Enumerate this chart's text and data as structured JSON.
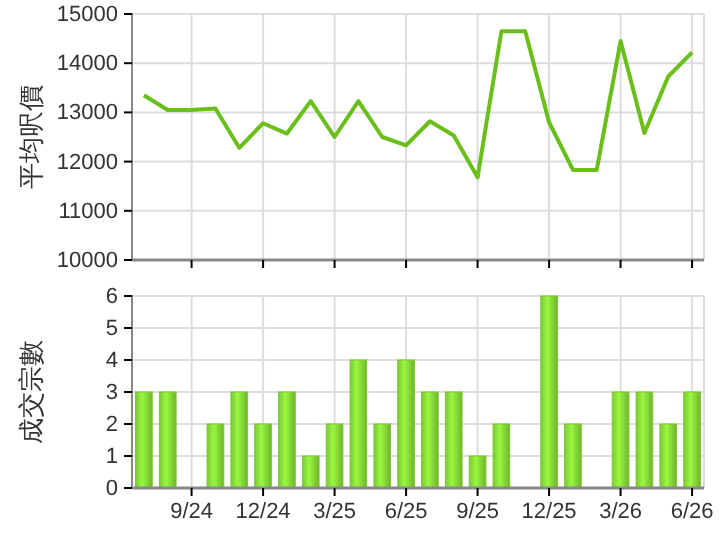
{
  "chart_data": [
    {
      "type": "line",
      "ylabel": "平均呎價",
      "categories": [
        null,
        null,
        null,
        null,
        null,
        null,
        null,
        null,
        null,
        null,
        null,
        null,
        null,
        null,
        null,
        null,
        null,
        null,
        null,
        null,
        null,
        null,
        null,
        null
      ],
      "series": [
        {
          "color": "#6abf1a",
          "values": [
            13350,
            13050,
            13050,
            13080,
            12280,
            12780,
            12570,
            13230,
            12500,
            13230,
            12500,
            12330,
            12820,
            12530,
            11680,
            14650,
            14650,
            12800,
            11830,
            11830,
            14450,
            12580,
            13730,
            14220
          ]
        }
      ],
      "ylim": [
        10000,
        15000
      ],
      "yticks": [
        10000,
        11000,
        12000,
        13000,
        14000,
        15000
      ],
      "grid": true,
      "tick_labels": "y",
      "line_style": "solid"
    },
    {
      "type": "bar",
      "ylabel": "成交宗數",
      "categories": [
        null,
        null,
        "9/24",
        null,
        null,
        "12/24",
        null,
        null,
        "3/25",
        null,
        null,
        "6/25",
        null,
        null,
        "9/25",
        null,
        null,
        "12/25",
        null,
        null,
        "3/26",
        null,
        null,
        "6/26"
      ],
      "values": [
        3,
        3,
        0,
        2,
        3,
        2,
        3,
        1,
        2,
        4,
        2,
        4,
        3,
        3,
        1,
        2,
        0,
        6,
        2,
        0,
        3,
        3,
        2,
        3
      ],
      "color": "#7cc834",
      "ylim": [
        0,
        6
      ],
      "yticks": [
        0,
        1,
        2,
        3,
        4,
        5,
        6
      ],
      "grid": true
    }
  ]
}
